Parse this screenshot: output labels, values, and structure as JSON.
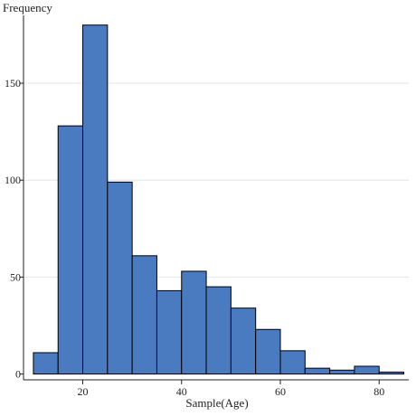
{
  "chart_data": {
    "type": "bar",
    "histogram": true,
    "bin_width": 5,
    "x_bin_starts": [
      10,
      15,
      20,
      25,
      30,
      35,
      40,
      45,
      50,
      55,
      60,
      65,
      70,
      75,
      80
    ],
    "values": [
      11,
      128,
      180,
      99,
      61,
      43,
      53,
      45,
      34,
      23,
      12,
      3,
      2,
      4,
      1
    ],
    "title": "",
    "xlabel": "Sample(Age)",
    "ylabel": "Frequency",
    "xlim": [
      8,
      86
    ],
    "ylim": [
      -3,
      185
    ],
    "x_ticks": [
      20,
      40,
      60,
      80
    ],
    "y_ticks": [
      0,
      50,
      100,
      150
    ],
    "grid": "horizontal",
    "bar_color": "#4a7ac0"
  }
}
